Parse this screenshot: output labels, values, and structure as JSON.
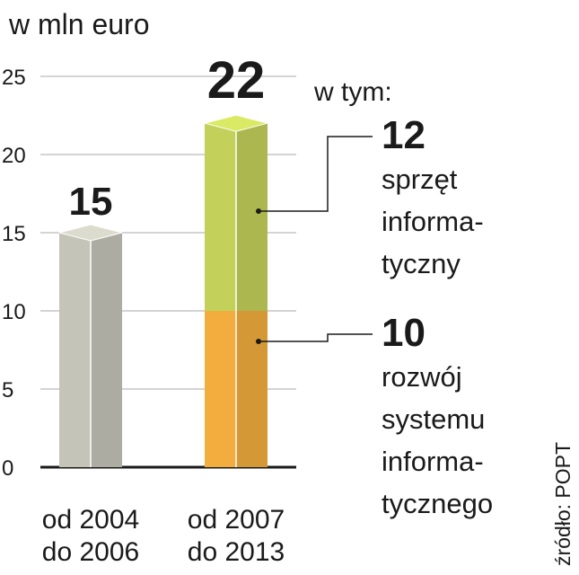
{
  "chart_data": {
    "type": "bar",
    "title": "w mln euro",
    "categories": [
      [
        "od 2004",
        "do 2006"
      ],
      [
        "od 2007",
        "do 2013"
      ]
    ],
    "series": [
      {
        "color": "#c4c4b8",
        "values": [
          15,
          null
        ]
      },
      {
        "color": "#f2ad3e",
        "values": [
          null,
          10
        ],
        "name": [
          "rozwój",
          "systemu",
          "informa-",
          "tycznego"
        ]
      },
      {
        "color": "#c3d15a",
        "values": [
          null,
          12
        ],
        "name": [
          "sprzęt",
          "informa-",
          "tyczny"
        ]
      }
    ],
    "totals": [
      15,
      22
    ],
    "total_colors": [
      "#1a1a1a",
      "#c8003c"
    ],
    "annotation": "w tym:",
    "source": "źródło: POPT",
    "ylim": [
      0,
      25
    ],
    "yticks": [
      0,
      5,
      10,
      15,
      20,
      25
    ],
    "grid": true
  }
}
